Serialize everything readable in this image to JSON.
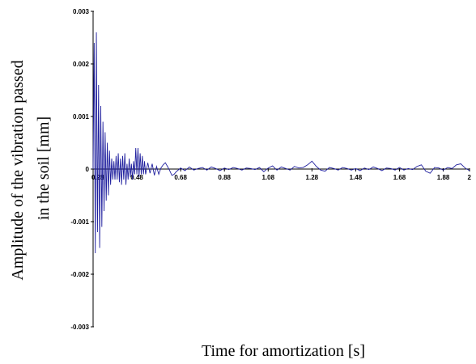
{
  "chart_data": {
    "type": "line",
    "xlabel": "Time for amortization [s]",
    "ylabel_line1": "Amplitude of  the vibration passed",
    "ylabel_line2": "in the soil [mm]",
    "xlim": [
      0.28,
      2
    ],
    "ylim": [
      -0.003,
      0.003
    ],
    "x_ticks": [
      "0.28",
      "0.48",
      "0.68",
      "0.88",
      "1.08",
      "1.28",
      "1.48",
      "1.68",
      "1.88",
      "2"
    ],
    "y_ticks": [
      "0.003",
      "0.002",
      "0.001",
      "0",
      "-0.001",
      "-0.002",
      "-0.003"
    ],
    "grid": false,
    "line_color": "#1f1f9e",
    "series": [
      {
        "x": [
          0.28,
          0.285,
          0.29,
          0.295,
          0.3,
          0.305,
          0.31,
          0.315,
          0.32,
          0.325,
          0.33,
          0.335,
          0.34,
          0.345,
          0.35,
          0.355,
          0.36,
          0.365,
          0.37,
          0.375,
          0.38,
          0.385,
          0.39,
          0.395,
          0.4,
          0.405,
          0.41,
          0.415,
          0.42,
          0.425,
          0.43,
          0.435,
          0.44,
          0.445,
          0.45,
          0.455,
          0.46,
          0.465,
          0.47,
          0.475,
          0.48,
          0.485,
          0.49,
          0.495,
          0.5,
          0.505,
          0.51,
          0.515,
          0.52,
          0.53,
          0.54,
          0.55,
          0.56,
          0.57,
          0.58,
          0.59,
          0.6,
          0.61,
          0.62,
          0.63,
          0.64,
          0.65,
          0.66,
          0.68,
          0.7,
          0.72,
          0.74,
          0.76,
          0.78,
          0.8,
          0.82,
          0.84,
          0.86,
          0.88,
          0.9,
          0.92,
          0.94,
          0.96,
          0.98,
          1.0,
          1.02,
          1.04,
          1.06,
          1.08,
          1.1,
          1.12,
          1.14,
          1.16,
          1.18,
          1.2,
          1.22,
          1.24,
          1.26,
          1.28,
          1.3,
          1.32,
          1.34,
          1.36,
          1.38,
          1.4,
          1.42,
          1.44,
          1.46,
          1.48,
          1.5,
          1.52,
          1.54,
          1.56,
          1.58,
          1.6,
          1.62,
          1.64,
          1.66,
          1.68,
          1.7,
          1.72,
          1.74,
          1.76,
          1.78,
          1.8,
          1.82,
          1.84,
          1.86,
          1.88,
          1.9,
          1.92,
          1.94,
          1.96,
          1.98,
          2.0
        ],
        "y": [
          0,
          0.0024,
          -0.0016,
          0.0026,
          -0.0012,
          0.0016,
          -0.0015,
          0.0012,
          -0.0011,
          0.0009,
          -0.0008,
          0.0007,
          -0.0006,
          0.0005,
          -0.0005,
          0.00035,
          -0.0003,
          0.0002,
          -0.0002,
          0.00015,
          -0.0002,
          0.00025,
          -0.0002,
          0.0003,
          -0.00025,
          0.0002,
          -0.0003,
          0.00025,
          -0.0002,
          0.0003,
          -0.0003,
          0.0001,
          -0.0002,
          0.0002,
          -0.00015,
          0.0001,
          -0.0002,
          0.00015,
          -0.0001,
          0.0004,
          -0.0001,
          0.0004,
          -0.00015,
          0.0003,
          -0.0001,
          0.00025,
          -0.0001,
          0.00015,
          -0.0001,
          0.00012,
          -8e-05,
          0.0001,
          -0.00012,
          5e-05,
          -0.0001,
          2e-05,
          8e-05,
          0.00012,
          5e-05,
          -3e-05,
          -0.00012,
          -0.0001,
          -5e-05,
          2e-05,
          -3e-05,
          4e-05,
          -2e-05,
          1e-05,
          3e-05,
          -2e-05,
          4e-05,
          1e-05,
          -3e-05,
          2e-05,
          -1e-05,
          3e-05,
          1e-05,
          -2e-05,
          2e-05,
          1e-05,
          -1e-05,
          3e-05,
          -5e-05,
          2e-05,
          6e-05,
          -2e-05,
          4e-05,
          1e-05,
          -2e-05,
          5e-05,
          2e-05,
          3e-05,
          8e-05,
          0.00015,
          5e-05,
          -2e-05,
          -4e-05,
          3e-05,
          1e-05,
          -2e-05,
          3e-05,
          1e-05,
          -2e-05,
          1e-05,
          -3e-05,
          2e-05,
          -1e-05,
          4e-05,
          1e-05,
          -3e-05,
          2e-05,
          1e-05,
          -2e-05,
          3e-05,
          -2e-05,
          1e-05,
          -1e-05,
          5e-05,
          8e-05,
          -4e-05,
          -8e-05,
          3e-05,
          2e-05,
          -2e-05,
          3e-05,
          1e-05,
          8e-05,
          0.0001,
          2e-05,
          -3e-05
        ]
      }
    ]
  }
}
